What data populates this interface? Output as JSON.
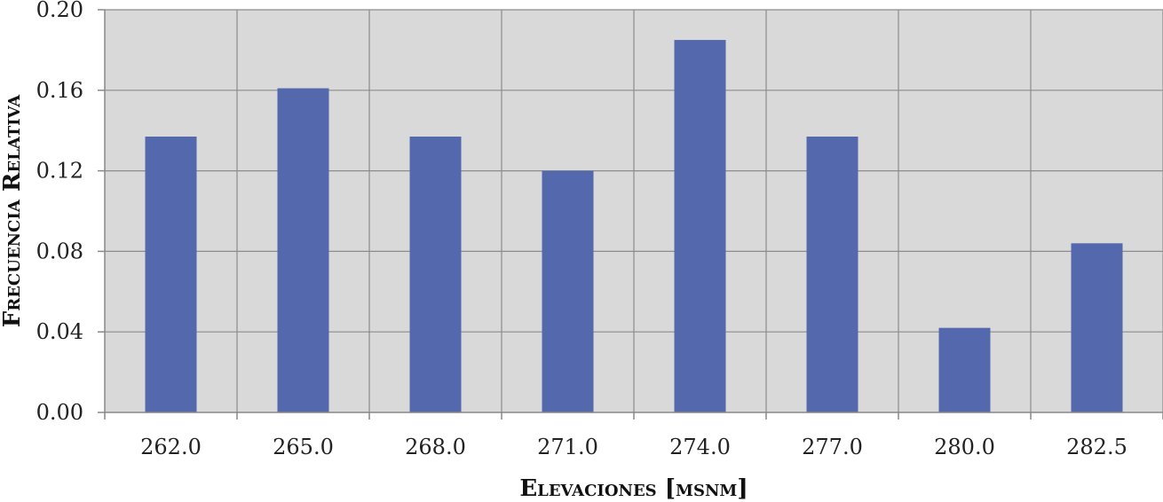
{
  "chart_data": {
    "type": "bar",
    "categories": [
      "262.0",
      "265.0",
      "268.0",
      "271.0",
      "274.0",
      "277.0",
      "280.0",
      "282.5"
    ],
    "values": [
      0.137,
      0.161,
      0.137,
      0.12,
      0.185,
      0.137,
      0.042,
      0.084
    ],
    "xlabel": "Elevaciones [msnm]",
    "ylabel": "Frecuencia Relativa",
    "ylim": [
      0,
      0.2
    ],
    "yticks": [
      "0.00",
      "0.04",
      "0.08",
      "0.12",
      "0.16",
      "0.20"
    ],
    "grid": true,
    "colors": {
      "bar": "#5469AD",
      "plot_bg": "#D9D9D9",
      "grid": "#8C8C8C"
    }
  }
}
